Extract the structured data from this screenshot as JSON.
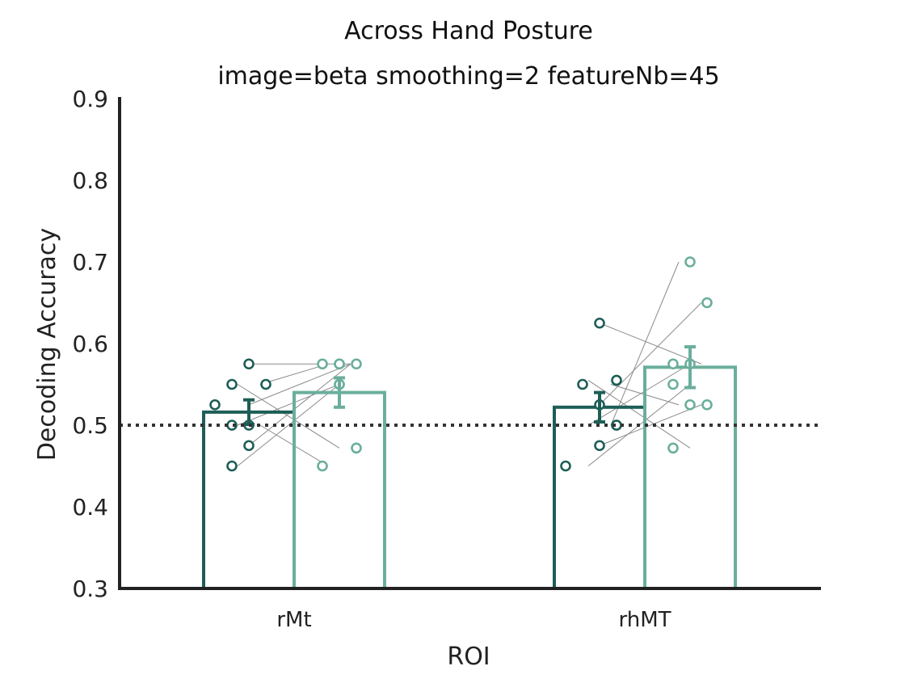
{
  "chart_data": {
    "type": "bar",
    "title": "Across Hand Posture",
    "subtitle": "image=beta smoothing=2 featureNb=45",
    "xlabel": "ROI",
    "ylabel": "Decoding Accuracy",
    "ylim": [
      0.3,
      0.9
    ],
    "yticks": [
      0.3,
      0.4,
      0.5,
      0.6,
      0.7,
      0.8,
      0.9
    ],
    "ytick_labels": [
      "0.3",
      "0.4",
      "0.5",
      "0.6",
      "0.7",
      "0.8",
      "0.9"
    ],
    "chance_level": 0.5,
    "grid": false,
    "categories": [
      "rMt",
      "rhMT"
    ],
    "series": [
      {
        "color": "#1d5e56",
        "values": [
          0.516,
          0.522
        ],
        "errors": [
          0.015,
          0.018
        ],
        "points": [
          [
            0.575,
            0.55,
            0.55,
            0.525,
            0.5,
            0.5,
            0.475,
            0.45
          ],
          [
            0.625,
            0.555,
            0.55,
            0.525,
            0.5,
            0.5,
            0.475,
            0.45
          ]
        ]
      },
      {
        "color": "#6aae9c",
        "values": [
          0.54,
          0.571
        ],
        "errors": [
          0.018,
          0.025
        ],
        "points": [
          [
            0.575,
            0.575,
            0.575,
            0.575,
            0.55,
            0.55,
            0.472,
            0.45
          ],
          [
            0.7,
            0.65,
            0.575,
            0.575,
            0.55,
            0.525,
            0.525,
            0.472
          ]
        ]
      }
    ],
    "subject_links": [
      [
        [
          0.45,
          0.55
        ],
        [
          0.475,
          0.575
        ],
        [
          0.5,
          0.45
        ],
        [
          0.5,
          0.55
        ],
        [
          0.525,
          0.575
        ],
        [
          0.55,
          0.575
        ],
        [
          0.55,
          0.472
        ],
        [
          0.575,
          0.575
        ]
      ],
      [
        [
          0.45,
          0.55
        ],
        [
          0.475,
          0.525
        ],
        [
          0.5,
          0.7
        ],
        [
          0.5,
          0.575
        ],
        [
          0.525,
          0.65
        ],
        [
          0.55,
          0.525
        ],
        [
          0.555,
          0.472
        ],
        [
          0.625,
          0.575
        ]
      ]
    ]
  }
}
